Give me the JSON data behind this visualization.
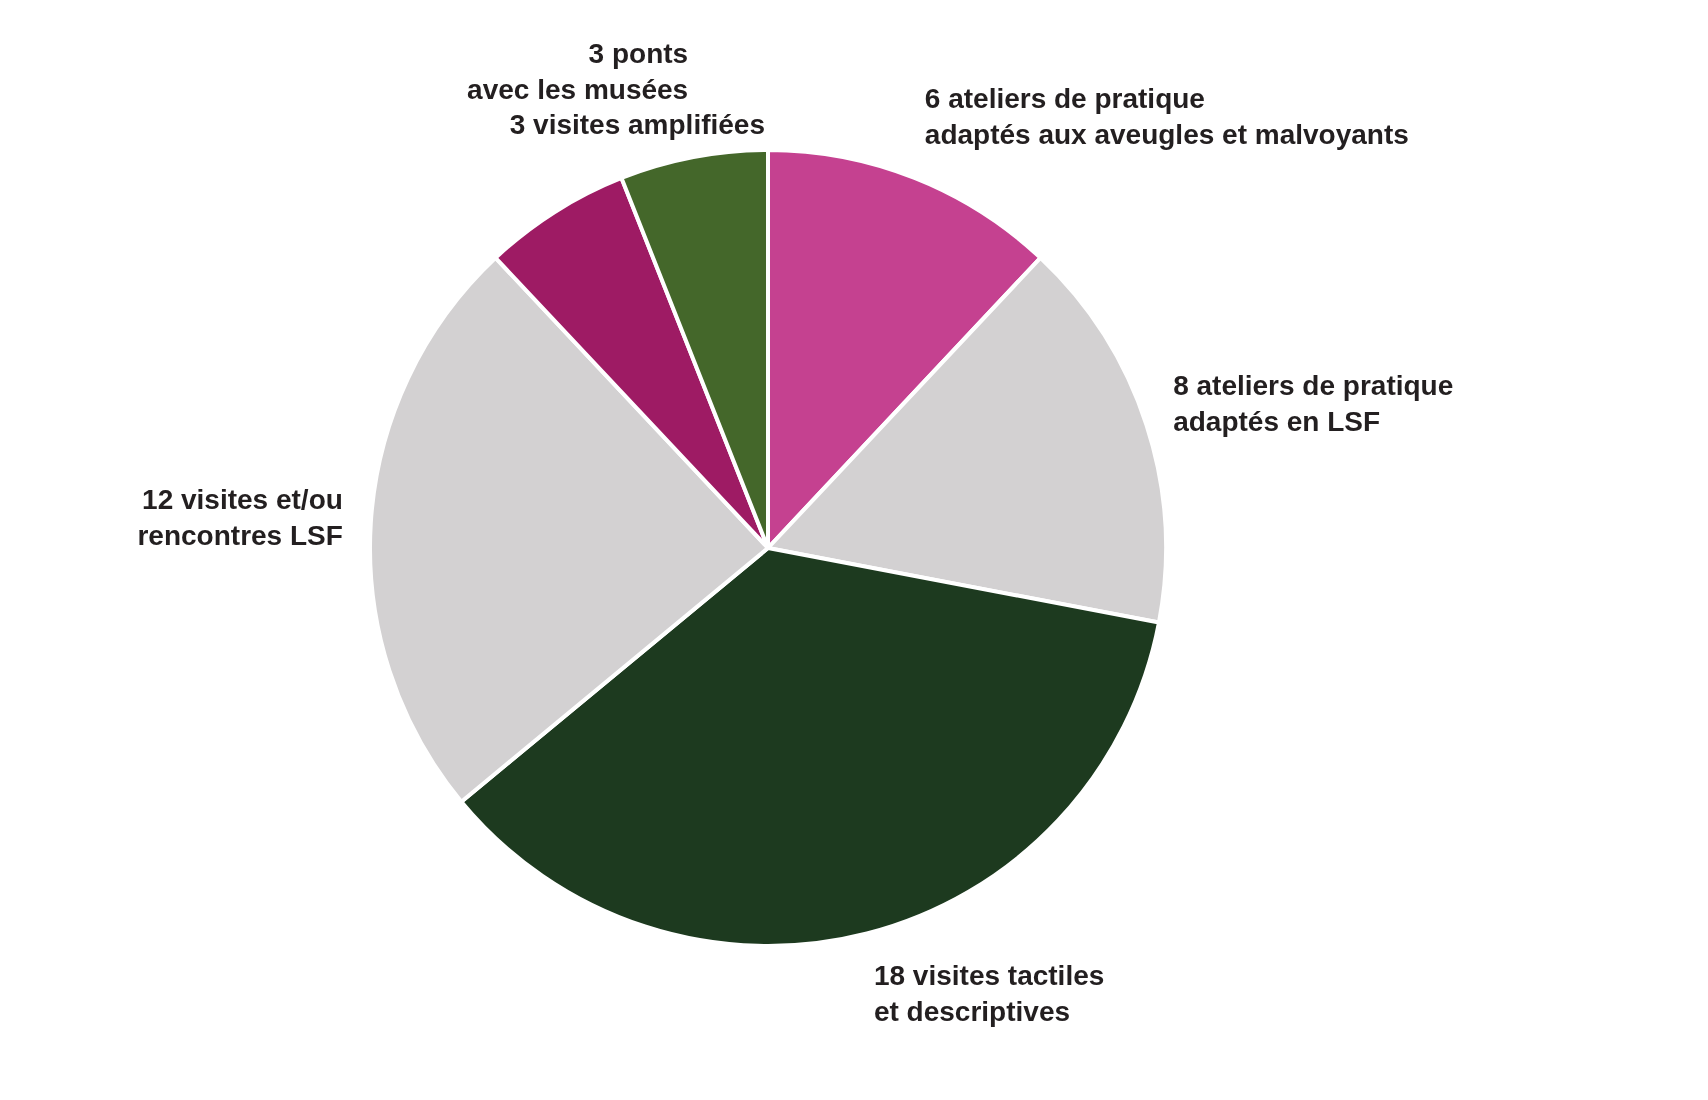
{
  "chart_data": {
    "type": "pie",
    "categories": [
      "ateliers de pratique\nadaptés aux aveugles et malvoyants",
      "ateliers de pratique\nadaptés en LSF",
      "visites tactiles\net descriptives",
      "visites et/ou\nrencontres LSF",
      "visites amplifiées",
      "ponts\navec les musées"
    ],
    "values": [
      6,
      8,
      18,
      12,
      3,
      3
    ],
    "colors": [
      "#c54190",
      "#d3d1d2",
      "#1d3a1f",
      "#d3d1d2",
      "#9e1b64",
      "#44672a"
    ],
    "data_labels": true,
    "legend": false
  }
}
